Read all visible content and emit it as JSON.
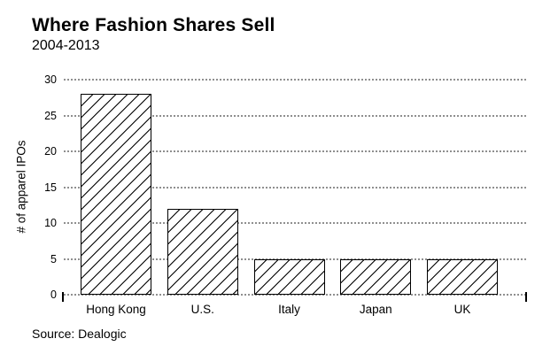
{
  "header": {
    "title": "Where Fashion Shares Sell",
    "subtitle": "2004-2013"
  },
  "chart_data": {
    "type": "bar",
    "title": "Where Fashion Shares Sell",
    "subtitle": "2004-2013",
    "categories": [
      "Hong Kong",
      "U.S.",
      "Italy",
      "Japan",
      "UK"
    ],
    "values": [
      28,
      12,
      5,
      5,
      5
    ],
    "xlabel": "",
    "ylabel": "# of apparel IPOs",
    "ylim": [
      0,
      30
    ],
    "yticks": [
      0,
      5,
      10,
      15,
      20,
      25,
      30
    ],
    "grid": {
      "horizontal": true,
      "style": "dotted",
      "color": "#8f8f8f"
    },
    "legend": "none",
    "bar_style": {
      "fill": "#ffffff",
      "hatch": "diagonal-forward-slash",
      "hatch_color": "#000000",
      "border_color": "#000000"
    }
  },
  "footer": {
    "source": "Source: Dealogic"
  },
  "colors": {
    "background": "#ffffff",
    "text": "#000000",
    "grid": "#8f8f8f",
    "bar_fill": "#ffffff",
    "bar_border": "#000000"
  }
}
